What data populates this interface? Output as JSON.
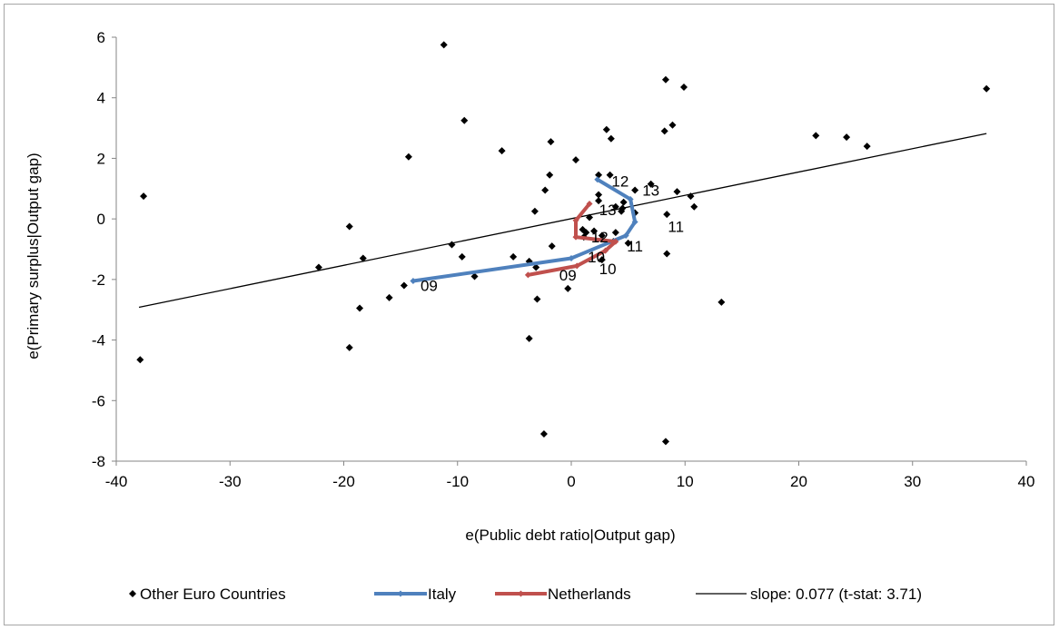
{
  "chart_data": {
    "type": "scatter",
    "title": "",
    "xlabel": "e(Public debt ratio|Output gap)",
    "ylabel": "e(Primary surplus|Output gap)",
    "xlim": [
      -40,
      40
    ],
    "ylim": [
      -8,
      6
    ],
    "xticks": [
      -40,
      -30,
      -20,
      -10,
      0,
      10,
      20,
      30,
      40
    ],
    "yticks": [
      -8,
      -6,
      -4,
      -2,
      0,
      2,
      4,
      6
    ],
    "grid": false,
    "legend_position": "bottom",
    "series": [
      {
        "name": "Other Euro Countries",
        "kind": "markers",
        "color": "#000000",
        "marker": "diamond",
        "points": [
          [
            -11.2,
            5.75
          ],
          [
            8.3,
            4.6
          ],
          [
            9.9,
            4.35
          ],
          [
            36.5,
            4.3
          ],
          [
            -9.4,
            3.25
          ],
          [
            8.9,
            3.1
          ],
          [
            3.1,
            2.95
          ],
          [
            8.2,
            2.9
          ],
          [
            21.5,
            2.75
          ],
          [
            24.2,
            2.7
          ],
          [
            3.5,
            2.65
          ],
          [
            -1.8,
            2.55
          ],
          [
            26.0,
            2.4
          ],
          [
            -6.1,
            2.25
          ],
          [
            -14.3,
            2.05
          ],
          [
            0.4,
            1.95
          ],
          [
            2.4,
            1.45
          ],
          [
            3.4,
            1.45
          ],
          [
            -1.9,
            1.45
          ],
          [
            7.0,
            1.15
          ],
          [
            -2.3,
            0.95
          ],
          [
            5.6,
            0.95
          ],
          [
            9.3,
            0.9
          ],
          [
            2.4,
            0.8
          ],
          [
            -37.6,
            0.75
          ],
          [
            10.5,
            0.75
          ],
          [
            2.4,
            0.6
          ],
          [
            4.6,
            0.55
          ],
          [
            10.8,
            0.4
          ],
          [
            3.9,
            0.4
          ],
          [
            4.5,
            0.35
          ],
          [
            -3.2,
            0.25
          ],
          [
            4.4,
            0.25
          ],
          [
            5.6,
            0.2
          ],
          [
            8.4,
            0.15
          ],
          [
            1.6,
            0.05
          ],
          [
            -19.5,
            -0.25
          ],
          [
            1.0,
            -0.35
          ],
          [
            2.0,
            -0.4
          ],
          [
            1.3,
            -0.45
          ],
          [
            2.7,
            -0.55
          ],
          [
            3.9,
            -0.45
          ],
          [
            1.1,
            -0.6
          ],
          [
            3.7,
            -0.75
          ],
          [
            5.0,
            -0.8
          ],
          [
            -10.5,
            -0.85
          ],
          [
            -1.7,
            -0.9
          ],
          [
            -5.1,
            -1.25
          ],
          [
            -9.6,
            -1.25
          ],
          [
            -18.3,
            -1.3
          ],
          [
            2.7,
            -1.35
          ],
          [
            -3.7,
            -1.4
          ],
          [
            8.4,
            -1.15
          ],
          [
            -22.2,
            -1.6
          ],
          [
            -3.1,
            -1.6
          ],
          [
            -8.5,
            -1.9
          ],
          [
            -3.0,
            -2.65
          ],
          [
            -0.3,
            -2.3
          ],
          [
            -14.7,
            -2.2
          ],
          [
            -16.0,
            -2.6
          ],
          [
            13.2,
            -2.75
          ],
          [
            -18.6,
            -2.95
          ],
          [
            -3.7,
            -3.95
          ],
          [
            -19.5,
            -4.25
          ],
          [
            -37.9,
            -4.65
          ],
          [
            -2.4,
            -7.1
          ],
          [
            8.3,
            -7.35
          ]
        ]
      },
      {
        "name": "Italy",
        "kind": "line",
        "color": "#4f81bd",
        "points": [
          [
            -13.9,
            -2.05
          ],
          [
            0.0,
            -1.3
          ],
          [
            4.8,
            -0.55
          ],
          [
            5.6,
            -0.1
          ],
          [
            5.2,
            0.65
          ],
          [
            2.3,
            1.3
          ]
        ]
      },
      {
        "name": "Netherlands",
        "kind": "line",
        "color": "#c0504d",
        "points": [
          [
            -3.8,
            -1.85
          ],
          [
            0.5,
            -1.55
          ],
          [
            3.0,
            -1.05
          ],
          [
            3.9,
            -0.75
          ],
          [
            0.4,
            -0.6
          ],
          [
            0.4,
            -0.05
          ],
          [
            1.6,
            0.5
          ]
        ]
      },
      {
        "name": "slope: 0.077 (t-stat: 3.71)",
        "kind": "fit",
        "color": "#000000",
        "points": [
          [
            -38.0,
            -2.92
          ],
          [
            36.5,
            2.82
          ]
        ]
      }
    ],
    "annotations": [
      {
        "text": "09",
        "x": -12.5,
        "y": -2.2
      },
      {
        "text": "10",
        "x": 2.2,
        "y": -1.25
      },
      {
        "text": "11",
        "x": 5.6,
        "y": -0.9
      },
      {
        "text": "12",
        "x": 4.3,
        "y": 1.25
      },
      {
        "text": "09",
        "x": -0.3,
        "y": -1.85
      },
      {
        "text": "10",
        "x": 3.2,
        "y": -1.65
      },
      {
        "text": "11",
        "x": 9.2,
        "y": -0.25
      },
      {
        "text": "12",
        "x": 2.5,
        "y": -0.6
      },
      {
        "text": "13",
        "x": 7.0,
        "y": 0.95
      },
      {
        "text": "13",
        "x": 3.2,
        "y": 0.3
      }
    ]
  }
}
